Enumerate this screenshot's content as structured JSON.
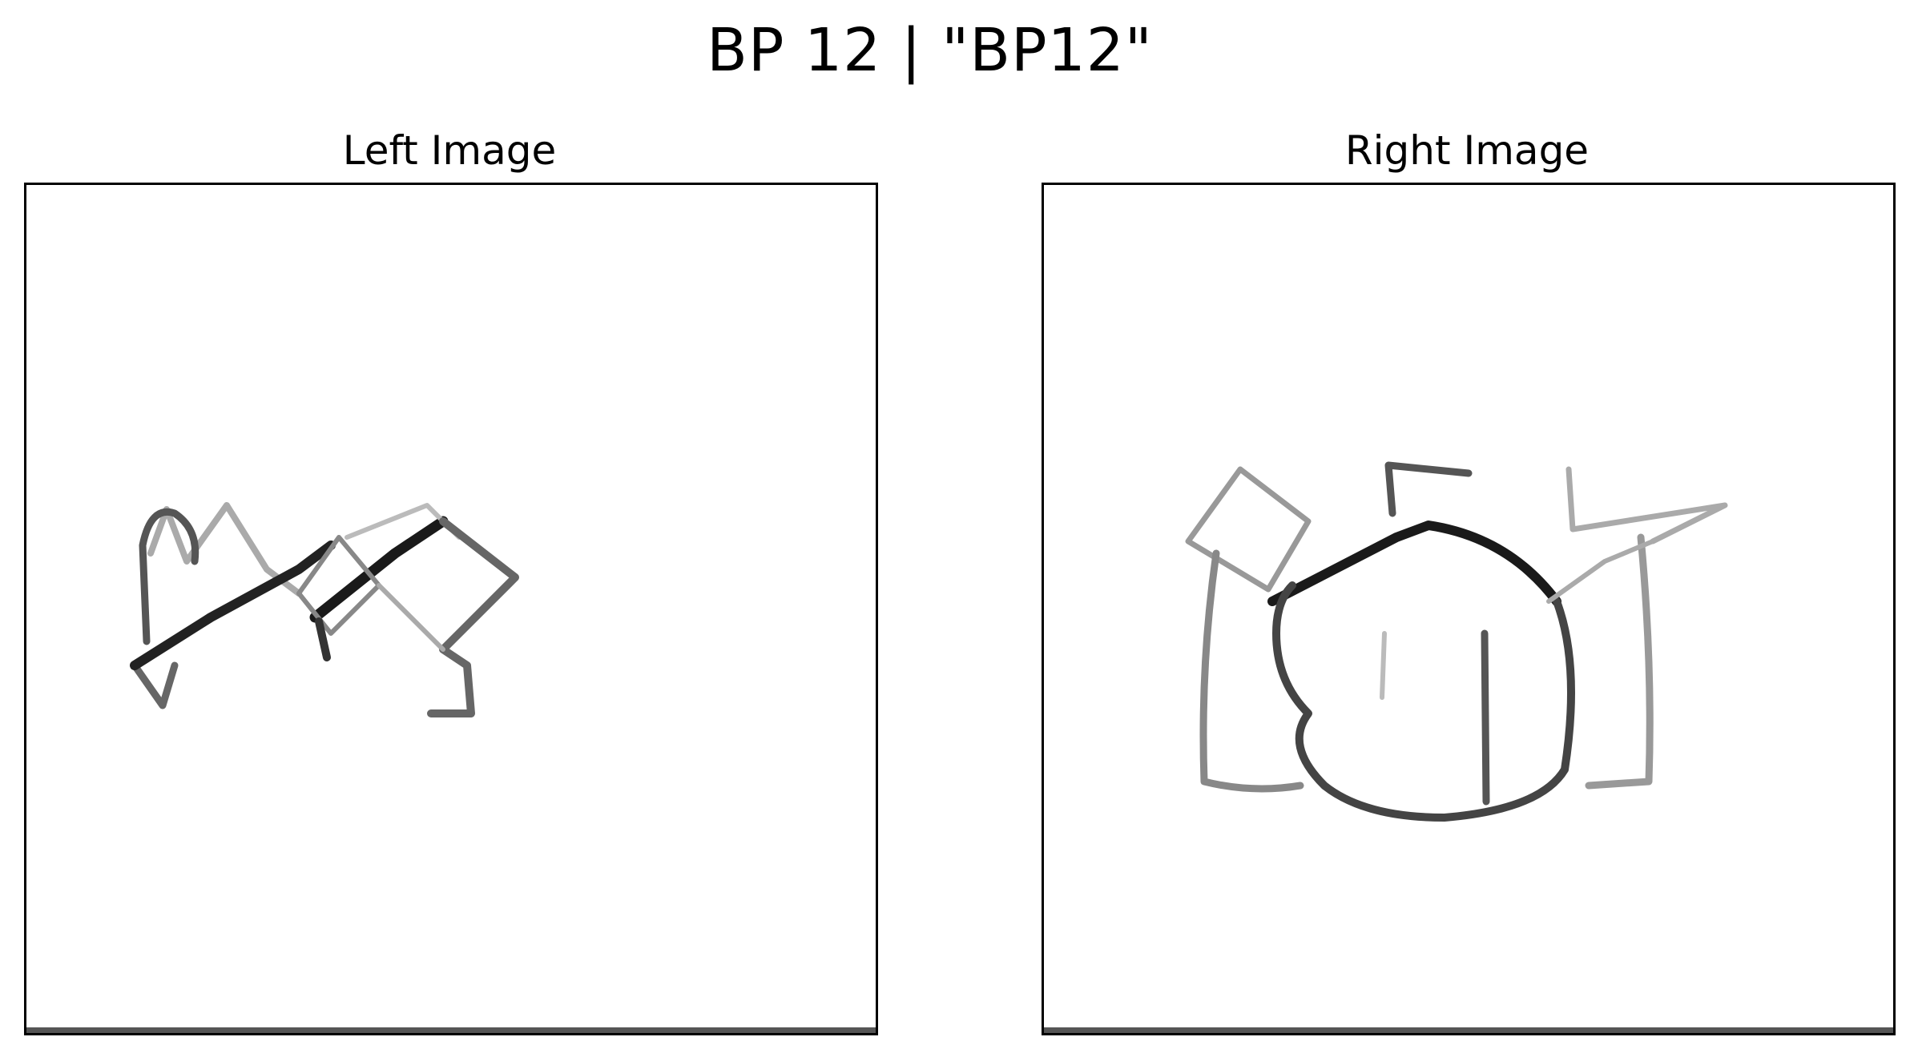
{
  "figure": {
    "title": "BP 12 | \"BP12\""
  },
  "panels": {
    "left": {
      "title": "Left Image",
      "content": "sketch-drawing"
    },
    "right": {
      "title": "Right Image",
      "content": "sketch-drawing"
    }
  },
  "colors": {
    "stroke_dark": "#111111",
    "stroke_mid": "#777777",
    "stroke_light": "#bbbbbb",
    "frame": "#000000",
    "background": "#ffffff"
  }
}
